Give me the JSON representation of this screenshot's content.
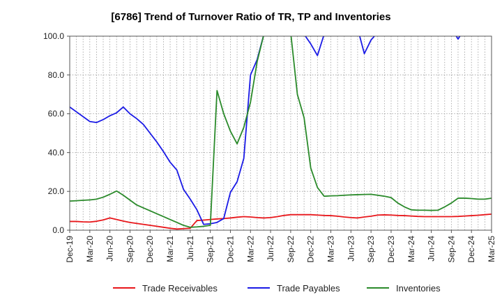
{
  "chart_data": {
    "type": "line",
    "title": "[6786]  Trend of Turnover Ratio of TR, TP and Inventories",
    "xlabel": "",
    "ylabel": "",
    "ylim": [
      0,
      100
    ],
    "y_ticks": [
      "0.0",
      "20.0",
      "40.0",
      "60.0",
      "80.0",
      "100.0"
    ],
    "x_ticks": [
      "Dec-19",
      "Mar-20",
      "Jun-20",
      "Sep-20",
      "Dec-20",
      "Mar-21",
      "Jun-21",
      "Sep-21",
      "Dec-21",
      "Mar-22",
      "Jun-22",
      "Sep-22",
      "Dec-22",
      "Mar-23",
      "Jun-23",
      "Sep-23",
      "Dec-23",
      "Mar-24",
      "Jun-24",
      "Sep-24",
      "Dec-24",
      "Mar-25"
    ],
    "grid": true,
    "legend_position": "bottom",
    "x_months_per_tick": 3,
    "series": [
      {
        "name": "Trade Receivables",
        "color": "#e8161a",
        "values": [
          4.5,
          4.5,
          4.3,
          4.2,
          4.6,
          5.3,
          6.3,
          5.5,
          4.7,
          4.0,
          3.5,
          3.0,
          2.5,
          2.0,
          1.5,
          1.0,
          0.6,
          0.8,
          1.0,
          5.0,
          5.2,
          5.5,
          5.8,
          6.0,
          6.3,
          6.7,
          7.0,
          6.8,
          6.5,
          6.3,
          6.5,
          7.0,
          7.6,
          8.0,
          8.0,
          8.0,
          8.0,
          7.8,
          7.6,
          7.5,
          7.2,
          6.8,
          6.5,
          6.3,
          6.8,
          7.2,
          7.8,
          7.9,
          7.8,
          7.6,
          7.5,
          7.3,
          7.1,
          7.0,
          7.0,
          7.0,
          7.0,
          7.0,
          7.1,
          7.3,
          7.5,
          7.7,
          8.0,
          8.3,
          8.6,
          8.8,
          8.8,
          8.7,
          8.6
        ]
      },
      {
        "name": "Trade Payables",
        "color": "#1a1ae6",
        "values": [
          63.5,
          61.0,
          58.5,
          56.0,
          55.5,
          57.0,
          59.0,
          60.5,
          63.5,
          60.0,
          57.5,
          54.5,
          50.0,
          45.5,
          40.5,
          35.0,
          31.0,
          21.0,
          16.0,
          10.5,
          3.0,
          3.3,
          4.0,
          6.0,
          19.5,
          25.0,
          37.0,
          80.0,
          88.0,
          101.0,
          104.0,
          104.0,
          104.0,
          104.0,
          104.0,
          101.0,
          96.0,
          90.0,
          101.0,
          104.0,
          104.0,
          104.0,
          104.0,
          104.0,
          91.0,
          98.0,
          102.0,
          104.0,
          104.0,
          104.0,
          104.0,
          104.0,
          104.0,
          104.0,
          104.0,
          104.0,
          104.0,
          104.0,
          98.5,
          104.0,
          104.0,
          104.0,
          104.0,
          104.0,
          104.0,
          104.0,
          104.0,
          104.0,
          104.0
        ]
      },
      {
        "name": "Inventories",
        "color": "#2a8a2a",
        "values": [
          15.0,
          15.2,
          15.4,
          15.6,
          16.0,
          17.0,
          18.5,
          20.2,
          18.0,
          15.5,
          13.0,
          11.5,
          10.0,
          8.5,
          7.0,
          5.5,
          4.0,
          2.5,
          1.5,
          1.7,
          2.0,
          2.5,
          72.0,
          60.0,
          51.0,
          44.5,
          53.0,
          66.0,
          87.0,
          101.0,
          104.0,
          104.0,
          104.0,
          102.0,
          70.0,
          58.0,
          32.0,
          22.0,
          17.5,
          17.7,
          17.8,
          18.0,
          18.2,
          18.3,
          18.4,
          18.5,
          18.0,
          17.5,
          16.8,
          14.0,
          12.0,
          10.5,
          10.3,
          10.3,
          10.2,
          10.3,
          12.0,
          14.0,
          16.5,
          16.5,
          16.3,
          16.0,
          16.0,
          16.5,
          17.0,
          17.5,
          18.5,
          19.5,
          20.0
        ]
      }
    ]
  }
}
